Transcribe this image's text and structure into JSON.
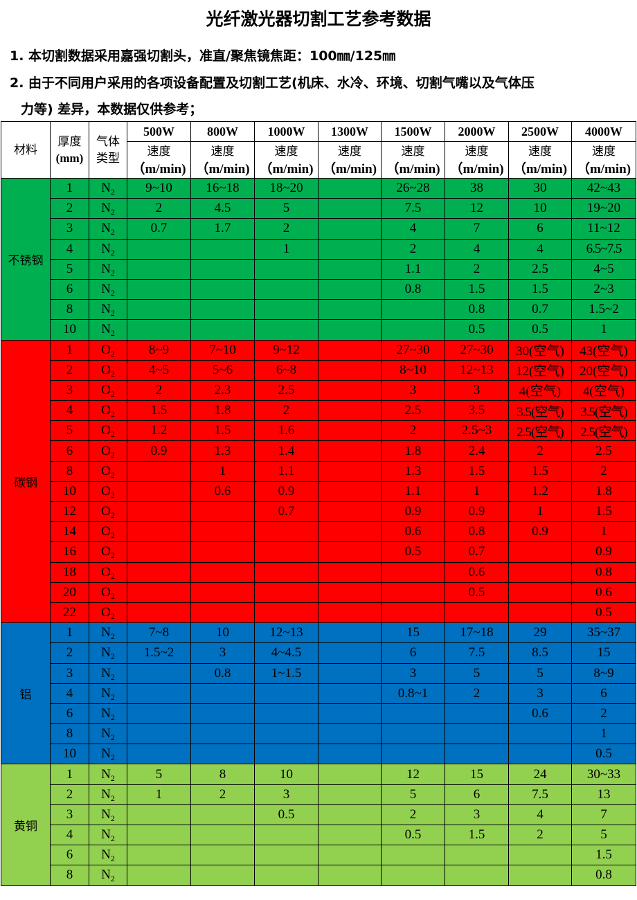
{
  "title": "光纤激光器切割工艺参考数据",
  "notes": [
    "1. 本切割数据采用嘉强切割头，准直/聚焦镜焦距：100㎜/125㎜",
    "2. 由于不同用户采用的各项设备配置及切割工艺(机床、水冷、环境、切割气嘴以及气体压",
    "力等) 差异，本数据仅供参考；"
  ],
  "header": {
    "material": "材料",
    "thickness": "厚度",
    "thickness_unit": "(mm)",
    "gas": "气体",
    "gas2": "类型",
    "speed": "速度",
    "speed_unit": "（m/min)",
    "powers": [
      "500W",
      "800W",
      "1000W",
      "1300W",
      "1500W",
      "2000W",
      "2500W",
      "4000W"
    ]
  },
  "materials": [
    {
      "name": "不锈钢",
      "color": "#00b050",
      "rows": [
        [
          "1",
          "N2",
          [
            "9~10",
            "16~18",
            "18~20",
            "",
            "26~28",
            "38",
            "30",
            "42~43"
          ]
        ],
        [
          "2",
          "N2",
          [
            "2",
            "4.5",
            "5",
            "",
            "7.5",
            "12",
            "10",
            "19~20"
          ]
        ],
        [
          "3",
          "N2",
          [
            "0.7",
            "1.7",
            "2",
            "",
            "4",
            "7",
            "6",
            "11~12"
          ]
        ],
        [
          "4",
          "N2",
          [
            "",
            "",
            "1",
            "",
            "2",
            "4",
            "4",
            "6.5~7.5"
          ]
        ],
        [
          "5",
          "N2",
          [
            "",
            "",
            "",
            "",
            "1.1",
            "2",
            "2.5",
            "4~5"
          ]
        ],
        [
          "6",
          "N2",
          [
            "",
            "",
            "",
            "",
            "0.8",
            "1.5",
            "1.5",
            "2~3"
          ]
        ],
        [
          "8",
          "N2",
          [
            "",
            "",
            "",
            "",
            "",
            "0.8",
            "0.7",
            "1.5~2"
          ]
        ],
        [
          "10",
          "N2",
          [
            "",
            "",
            "",
            "",
            "",
            "0.5",
            "0.5",
            "1"
          ]
        ]
      ]
    },
    {
      "name": "碳钢",
      "color": "#ff0000",
      "rows": [
        [
          "1",
          "O2",
          [
            "8~9",
            "7~10",
            "9~12",
            "",
            "27~30",
            "27~30",
            "30(空气)",
            "43(空气)"
          ]
        ],
        [
          "2",
          "O2",
          [
            "4~5",
            "5~6",
            "6~8",
            "",
            "8~10",
            "12~13",
            "12(空气)",
            "20(空气)"
          ]
        ],
        [
          "3",
          "O2",
          [
            "2",
            "2.3",
            "2.5",
            "",
            "3",
            "3",
            "4(空气)",
            "4(空气)"
          ]
        ],
        [
          "4",
          "O2",
          [
            "1.5",
            "1.8",
            "2",
            "",
            "2.5",
            "3.5",
            "3.5(空气)",
            "3.5(空气)"
          ]
        ],
        [
          "5",
          "O2",
          [
            "1.2",
            "1.5",
            "1.6",
            "",
            "2",
            "2.5~3",
            "2.5(空气)",
            "2.5(空气)"
          ]
        ],
        [
          "6",
          "O2",
          [
            "0.9",
            "1.3",
            "1.4",
            "",
            "1.8",
            "2.4",
            "2",
            "2.5"
          ]
        ],
        [
          "8",
          "O2",
          [
            "",
            "1",
            "1.1",
            "",
            "1.3",
            "1.5",
            "1.5",
            "2"
          ]
        ],
        [
          "10",
          "O2",
          [
            "",
            "0.6",
            "0.9",
            "",
            "1.1",
            "1",
            "1.2",
            "1.8"
          ]
        ],
        [
          "12",
          "O2",
          [
            "",
            "",
            "0.7",
            "",
            "0.9",
            "0.9",
            "1",
            "1.5"
          ]
        ],
        [
          "14",
          "O2",
          [
            "",
            "",
            "",
            "",
            "0.6",
            "0.8",
            "0.9",
            "1"
          ]
        ],
        [
          "16",
          "O2",
          [
            "",
            "",
            "",
            "",
            "0.5",
            "0.7",
            "",
            "0.9"
          ]
        ],
        [
          "18",
          "O2",
          [
            "",
            "",
            "",
            "",
            "",
            "0.6",
            "",
            "0.8"
          ]
        ],
        [
          "20",
          "O2",
          [
            "",
            "",
            "",
            "",
            "",
            "0.5",
            "",
            "0.6"
          ]
        ],
        [
          "22",
          "O2",
          [
            "",
            "",
            "",
            "",
            "",
            "",
            "",
            "0.5"
          ]
        ]
      ]
    },
    {
      "name": "铝",
      "color": "#0070c0",
      "rows": [
        [
          "1",
          "N2",
          [
            "7~8",
            "10",
            "12~13",
            "",
            "15",
            "17~18",
            "29",
            "35~37"
          ]
        ],
        [
          "2",
          "N2",
          [
            "1.5~2",
            "3",
            "4~4.5",
            "",
            "6",
            "7.5",
            "8.5",
            "15"
          ]
        ],
        [
          "3",
          "N2",
          [
            "",
            "0.8",
            "1~1.5",
            "",
            "3",
            "5",
            "5",
            "8~9"
          ]
        ],
        [
          "4",
          "N2",
          [
            "",
            "",
            "",
            "",
            "0.8~1",
            "2",
            "3",
            "6"
          ]
        ],
        [
          "6",
          "N2",
          [
            "",
            "",
            "",
            "",
            "",
            "",
            "0.6",
            "2"
          ]
        ],
        [
          "8",
          "N2",
          [
            "",
            "",
            "",
            "",
            "",
            "",
            "",
            "1"
          ]
        ],
        [
          "10",
          "N2",
          [
            "",
            "",
            "",
            "",
            "",
            "",
            "",
            "0.5"
          ]
        ]
      ]
    },
    {
      "name": "黄铜",
      "color": "#92d050",
      "rows": [
        [
          "1",
          "N2",
          [
            "5",
            "8",
            "10",
            "",
            "12",
            "15",
            "24",
            "30~33"
          ]
        ],
        [
          "2",
          "N2",
          [
            "1",
            "2",
            "3",
            "",
            "5",
            "6",
            "7.5",
            "13"
          ]
        ],
        [
          "3",
          "N2",
          [
            "",
            "",
            "0.5",
            "",
            "2",
            "3",
            "4",
            "7"
          ]
        ],
        [
          "4",
          "N2",
          [
            "",
            "",
            "",
            "",
            "0.5",
            "1.5",
            "2",
            "5"
          ]
        ],
        [
          "6",
          "N2",
          [
            "",
            "",
            "",
            "",
            "",
            "",
            "",
            "1.5"
          ]
        ],
        [
          "8",
          "N2",
          [
            "",
            "",
            "",
            "",
            "",
            "",
            "",
            "0.8"
          ]
        ]
      ]
    }
  ]
}
